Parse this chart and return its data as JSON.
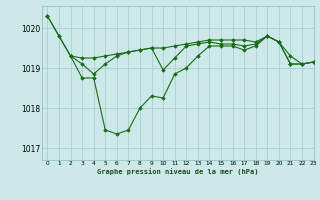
{
  "title": "Graphe pression niveau de la mer (hPa)",
  "bg_color": "#cce8e8",
  "grid_color": "#aad0d0",
  "line_color": "#1a6b1a",
  "marker_color": "#1a6b1a",
  "xlim": [
    -0.5,
    23
  ],
  "ylim": [
    1016.7,
    1020.55
  ],
  "yticks": [
    1017,
    1018,
    1019,
    1020
  ],
  "xticks": [
    0,
    1,
    2,
    3,
    4,
    5,
    6,
    7,
    8,
    9,
    10,
    11,
    12,
    13,
    14,
    15,
    16,
    17,
    18,
    19,
    20,
    21,
    22,
    23
  ],
  "series": [
    {
      "x": [
        0,
        1,
        2,
        3,
        4,
        5,
        6,
        7,
        8,
        9,
        10,
        11,
        12,
        13,
        14,
        15,
        16,
        17,
        18,
        19,
        20,
        21,
        22,
        23
      ],
      "y": [
        1020.3,
        1019.8,
        1019.3,
        1018.75,
        1018.75,
        1017.45,
        1017.35,
        1017.45,
        1018.0,
        1018.3,
        1018.25,
        1018.85,
        1019.0,
        1019.3,
        1019.55,
        1019.55,
        1019.55,
        1019.45,
        1019.55,
        1019.8,
        1019.65,
        1019.1,
        1019.1,
        1019.15
      ]
    },
    {
      "x": [
        0,
        1,
        2,
        3,
        4,
        5,
        6,
        7,
        8,
        9,
        10,
        11,
        12,
        13,
        14,
        15,
        16,
        17,
        18,
        19,
        20,
        21,
        22,
        23
      ],
      "y": [
        1020.3,
        1019.8,
        1019.3,
        1019.25,
        1019.25,
        1019.3,
        1019.35,
        1019.4,
        1019.45,
        1019.5,
        1019.5,
        1019.55,
        1019.6,
        1019.65,
        1019.7,
        1019.7,
        1019.7,
        1019.7,
        1019.65,
        1019.8,
        1019.65,
        1019.3,
        1019.1,
        1019.15
      ]
    },
    {
      "x": [
        2,
        3,
        4,
        5,
        6,
        7,
        8,
        9,
        10,
        11,
        12,
        13,
        14,
        15,
        16,
        17,
        18,
        19,
        20,
        21,
        22,
        23
      ],
      "y": [
        1019.3,
        1019.1,
        1018.85,
        1019.1,
        1019.3,
        1019.4,
        1019.45,
        1019.5,
        1018.95,
        1019.25,
        1019.55,
        1019.6,
        1019.65,
        1019.6,
        1019.6,
        1019.55,
        1019.6,
        1019.8,
        1019.65,
        1019.1,
        1019.1,
        1019.15
      ]
    }
  ]
}
